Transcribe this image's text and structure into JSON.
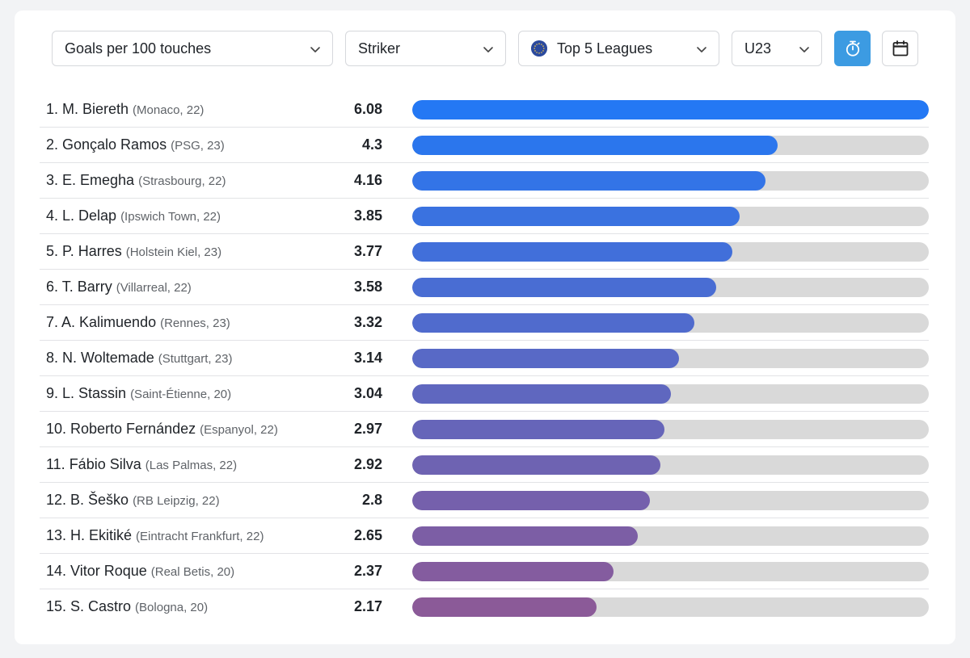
{
  "filters": {
    "metric": "Goals per 100 touches",
    "position": "Striker",
    "competition": "Top 5 Leagues",
    "age_group": "U23"
  },
  "icons": {
    "competition_icon": "eu-flag-icon",
    "timer_button_icon": "stopwatch-icon",
    "calendar_button_icon": "calendar-icon",
    "dropdown_icon": "chevron-down-icon"
  },
  "colors": {
    "accent": "#3c9be2",
    "bar_track": "#d9d9d9",
    "bar_gradient_start": "#2478f4",
    "bar_gradient_end": "#8b5a98"
  },
  "chart_data": {
    "type": "bar",
    "orientation": "horizontal",
    "xlim": [
      0,
      6.08
    ],
    "categories": [
      "1. M. Biereth",
      "2. Gonçalo Ramos",
      "3. E. Emegha",
      "4. L. Delap",
      "5. P. Harres",
      "6. T. Barry",
      "7. A. Kalimuendo",
      "8. N. Woltemade",
      "9. L. Stassin",
      "10. Roberto Fernández",
      "11. Fábio Silva",
      "12. B. Šeško",
      "13. H. Ekitiké",
      "14. Vitor Roque",
      "15. S. Castro"
    ],
    "values": [
      6.08,
      4.3,
      4.16,
      3.85,
      3.77,
      3.58,
      3.32,
      3.14,
      3.04,
      2.97,
      2.92,
      2.8,
      2.65,
      2.37,
      2.17
    ]
  },
  "rows": [
    {
      "name": "1. M. Biereth",
      "meta": "(Monaco, 22)",
      "value_label": "6.08"
    },
    {
      "name": "2. Gonçalo Ramos",
      "meta": "(PSG, 23)",
      "value_label": "4.3"
    },
    {
      "name": "3. E. Emegha",
      "meta": "(Strasbourg, 22)",
      "value_label": "4.16"
    },
    {
      "name": "4. L. Delap",
      "meta": "(Ipswich Town, 22)",
      "value_label": "3.85"
    },
    {
      "name": "5. P. Harres",
      "meta": "(Holstein Kiel, 23)",
      "value_label": "3.77"
    },
    {
      "name": "6. T. Barry",
      "meta": "(Villarreal, 22)",
      "value_label": "3.58"
    },
    {
      "name": "7. A. Kalimuendo",
      "meta": "(Rennes, 23)",
      "value_label": "3.32"
    },
    {
      "name": "8. N. Woltemade",
      "meta": "(Stuttgart, 23)",
      "value_label": "3.14"
    },
    {
      "name": "9. L. Stassin",
      "meta": "(Saint-Étienne, 20)",
      "value_label": "3.04"
    },
    {
      "name": "10. Roberto Fernández",
      "meta": "(Espanyol, 22)",
      "value_label": "2.97"
    },
    {
      "name": "11. Fábio Silva",
      "meta": "(Las Palmas, 22)",
      "value_label": "2.92"
    },
    {
      "name": "12. B. Šeško",
      "meta": "(RB Leipzig, 22)",
      "value_label": "2.8"
    },
    {
      "name": "13. H. Ekitiké",
      "meta": "(Eintracht Frankfurt, 22)",
      "value_label": "2.65"
    },
    {
      "name": "14. Vitor Roque",
      "meta": "(Real Betis, 20)",
      "value_label": "2.37"
    },
    {
      "name": "15. S. Castro",
      "meta": "(Bologna, 20)",
      "value_label": "2.17"
    }
  ]
}
